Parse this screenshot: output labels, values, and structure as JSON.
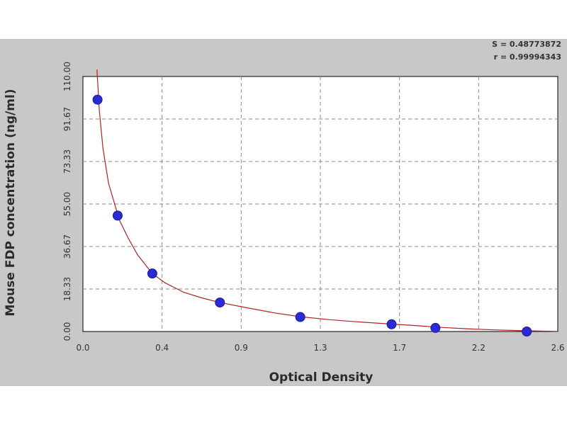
{
  "chart_data": {
    "type": "scatter",
    "xlabel": "Optical Density",
    "ylabel": "Mouse FDP concentration (ng/ml)",
    "xlim": [
      0.0,
      2.6
    ],
    "ylim": [
      0.0,
      110.0
    ],
    "x_ticks": [
      "0.0",
      "0.4",
      "0.9",
      "1.3",
      "1.7",
      "2.2",
      "2.6"
    ],
    "y_ticks": [
      "0.00",
      "18.33",
      "36.67",
      "55.00",
      "73.33",
      "91.67",
      "110.00"
    ],
    "grid": true,
    "stats": {
      "s_line": "S = 0.48773872",
      "r_line": "r = 0.99994343"
    },
    "colors": {
      "background": "#c8c8c8",
      "plot_area": "#ffffff",
      "curve": "#b22222",
      "points": "#2a2ad6"
    },
    "series": [
      {
        "type": "scatter",
        "x": [
          0.08,
          0.19,
          0.38,
          0.75,
          1.19,
          1.69,
          1.93,
          2.43
        ],
        "y": [
          100.0,
          50.0,
          25.0,
          12.5,
          6.25,
          3.125,
          1.56,
          0.0
        ]
      }
    ],
    "fit_curve": {
      "x": [
        0.077,
        0.09,
        0.11,
        0.14,
        0.17,
        0.2,
        0.25,
        0.3,
        0.38,
        0.45,
        0.55,
        0.65,
        0.75,
        0.9,
        1.05,
        1.19,
        1.35,
        1.5,
        1.69,
        1.85,
        1.93,
        2.1,
        2.25,
        2.43,
        2.6
      ],
      "y": [
        113.0,
        95.0,
        79.0,
        64.0,
        56.0,
        48.0,
        40.0,
        33.0,
        25.0,
        21.0,
        17.0,
        14.5,
        12.5,
        10.2,
        8.0,
        6.4,
        5.1,
        4.2,
        3.2,
        2.4,
        1.9,
        1.2,
        0.7,
        0.3,
        0.05
      ]
    }
  }
}
